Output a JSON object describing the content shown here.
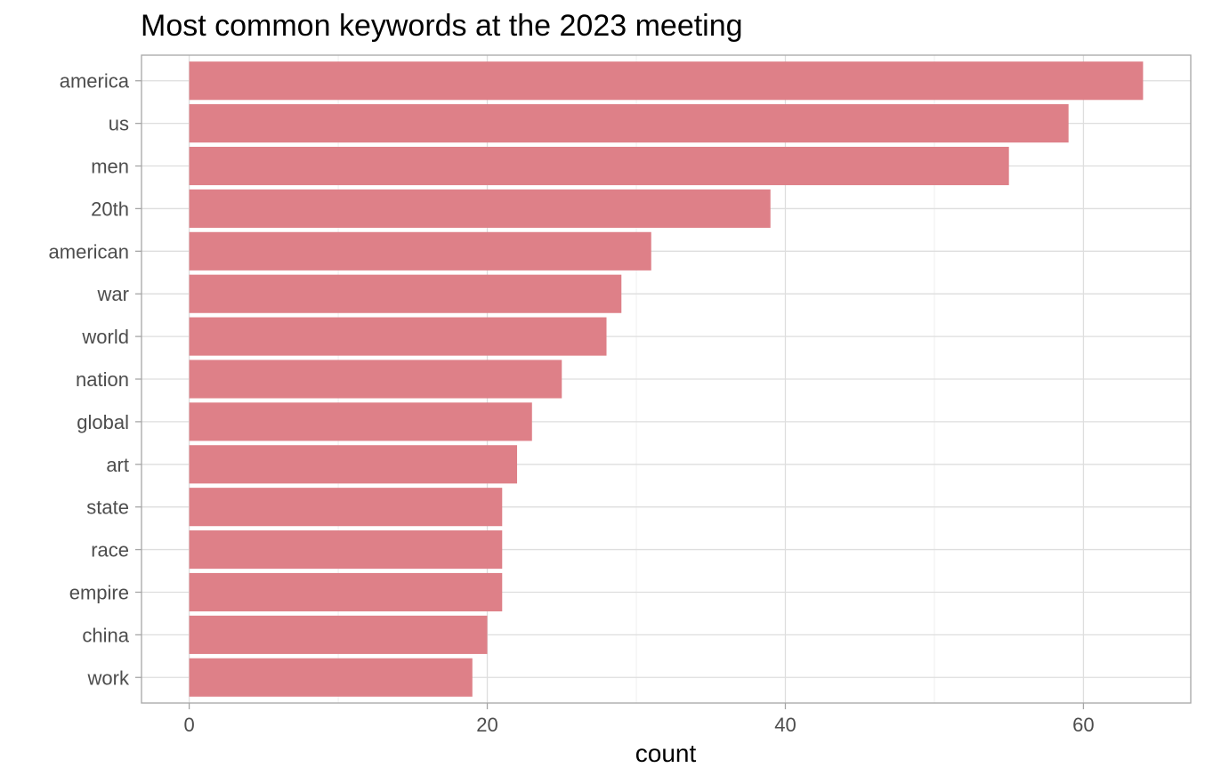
{
  "chart_data": {
    "type": "bar",
    "orientation": "horizontal",
    "title": "Most common keywords at the 2023 meeting",
    "xlabel": "count",
    "ylabel": "",
    "categories": [
      "america",
      "us",
      "men",
      "20th",
      "american",
      "war",
      "world",
      "nation",
      "global",
      "art",
      "state",
      "race",
      "empire",
      "china",
      "work"
    ],
    "values": [
      64,
      59,
      55,
      39,
      31,
      29,
      28,
      25,
      23,
      22,
      21,
      21,
      21,
      20,
      19
    ],
    "xlim": [
      -3.2,
      67.2
    ],
    "x_ticks": [
      0,
      20,
      40,
      60
    ],
    "x_tick_labels": [
      "0",
      "20",
      "40",
      "60"
    ],
    "grid": true,
    "legend": "none",
    "bar_color": "#de8088"
  }
}
